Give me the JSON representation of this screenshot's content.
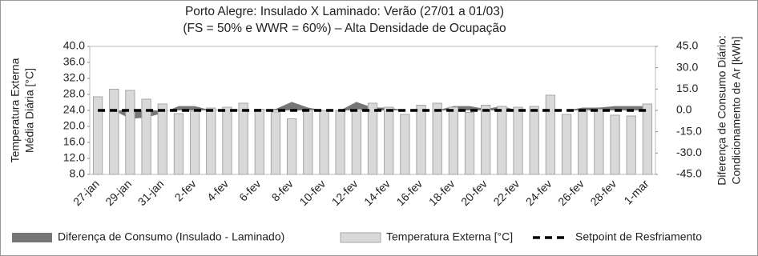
{
  "chart_data": {
    "type": "combo",
    "title": [
      "Porto Alegre: Insulado X Laminado: Verão (27/01 a 01/03)",
      "(FS = 50% e WWR = 60%) – Alta Densidade de Ocupação"
    ],
    "y_label": [
      "Temperatura Externa",
      "Média Diária [°C]"
    ],
    "y2_label": [
      "Diferença de Consumo Diário:",
      "Condicionamento de Ar [kWh]"
    ],
    "categories": [
      "27-jan",
      null,
      "29-jan",
      null,
      "31-jan",
      null,
      "2-fev",
      null,
      "4-fev",
      null,
      "6-fev",
      null,
      "8-fev",
      null,
      "10-fev",
      null,
      "12-fev",
      null,
      "14-fev",
      null,
      "16-fev",
      null,
      "18-fev",
      null,
      "20-fev",
      null,
      "22-fev",
      null,
      "24-fev",
      null,
      "26-fev",
      null,
      "28-fev",
      null,
      "1-mar"
    ],
    "ylim": [
      8,
      40
    ],
    "yticks": [
      {
        "value": 8,
        "label": "8.0"
      },
      {
        "value": 12,
        "label": "12.0"
      },
      {
        "value": 16,
        "label": "16.0"
      },
      {
        "value": 20,
        "label": "20.0"
      },
      {
        "value": 24,
        "label": "24.0"
      },
      {
        "value": 28,
        "label": "28.0"
      },
      {
        "value": 32,
        "label": "32.0"
      },
      {
        "value": 36,
        "label": "36.0"
      },
      {
        "value": 40,
        "label": "40.0"
      }
    ],
    "y2lim": [
      -45,
      45
    ],
    "y2ticks": [
      {
        "value": -45,
        "label": "-45.0"
      },
      {
        "value": -30,
        "label": "-30.0"
      },
      {
        "value": -15,
        "label": "-15.0"
      },
      {
        "value": 0,
        "label": "0.0"
      },
      {
        "value": 15,
        "label": "15.0"
      },
      {
        "value": 30,
        "label": "30.0"
      },
      {
        "value": 45,
        "label": "45.0"
      }
    ],
    "series": [
      {
        "name": "Diferença de Consumo (Insulado - Laminado)",
        "kind": "area",
        "axis": "y2",
        "color": "#767676",
        "values": [
          0,
          0,
          -6,
          -5,
          -2,
          3,
          3,
          0,
          1,
          0,
          0,
          1,
          6,
          2,
          0,
          0,
          6,
          2,
          2,
          0,
          0,
          0,
          3,
          3,
          1,
          3,
          0,
          0,
          0,
          0,
          2,
          2,
          3,
          3,
          3
        ]
      },
      {
        "name": "Temperatura Externa [°C]",
        "kind": "bar",
        "axis": "y",
        "color": "#d9d9d9",
        "values": [
          27.4,
          29.3,
          29.0,
          26.8,
          25.6,
          23.2,
          23.8,
          24.6,
          24.8,
          25.8,
          24.3,
          23.6,
          21.9,
          24.1,
          24.0,
          24.0,
          24.3,
          25.8,
          24.8,
          23.0,
          25.3,
          25.8,
          24.8,
          23.5,
          25.3,
          25.0,
          24.8,
          25.0,
          27.8,
          23.0,
          23.8,
          24.3,
          22.8,
          22.6,
          25.6
        ]
      },
      {
        "name": "Setpoint de Resfriamento",
        "kind": "line",
        "axis": "y",
        "color": "#000000",
        "values": [
          24,
          24,
          24,
          24,
          24,
          24,
          24,
          24,
          24,
          24,
          24,
          24,
          24,
          24,
          24,
          24,
          24,
          24,
          24,
          24,
          24,
          24,
          24,
          24,
          24,
          24,
          24,
          24,
          24,
          24,
          24,
          24,
          24,
          24,
          24
        ]
      }
    ]
  }
}
